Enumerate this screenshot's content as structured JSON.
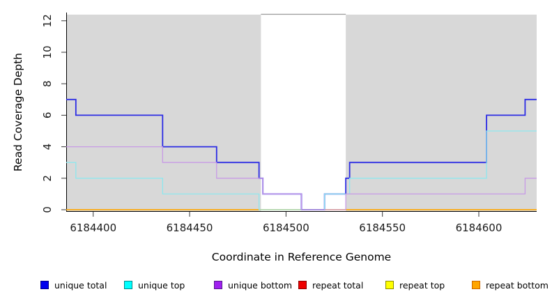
{
  "chart_data": {
    "type": "line",
    "subtype": "step",
    "title": "",
    "xlabel": "Coordinate in Reference Genome",
    "ylabel": "Read Coverage Depth",
    "xlim": [
      6184386,
      6184630
    ],
    "ylim": [
      0,
      12
    ],
    "x_tick_values": [
      6184400,
      6184450,
      6184500,
      6184550,
      6184600
    ],
    "x_tick_labels": [
      "6184400",
      "6184450",
      "6184500",
      "6184550",
      "6184600"
    ],
    "y_tick_values": [
      0,
      2,
      4,
      6,
      8,
      10,
      12
    ],
    "y_tick_labels": [
      "0",
      "2",
      "4",
      "6",
      "8",
      "10",
      "12"
    ],
    "grid": false,
    "legend_position": "bottom",
    "panel_bg": "#d8d8d8",
    "highlight_band": {
      "x0": 6184487,
      "x1": 6184531,
      "fill": "#ffffff",
      "top_border": "#999999"
    },
    "draw_order": [
      3,
      4,
      5,
      0,
      1,
      2
    ],
    "series": [
      {
        "name": "unique total",
        "legend_color": "#0000ee",
        "legend_edge": "#00008b",
        "line_color": "#2b2be4",
        "width": 1.8,
        "steps": [
          [
            6184386,
            7
          ],
          [
            6184391,
            6
          ],
          [
            6184436,
            4
          ],
          [
            6184464,
            3
          ],
          [
            6184486,
            2
          ],
          [
            6184488,
            1
          ],
          [
            6184508,
            0
          ],
          [
            6184520,
            1
          ],
          [
            6184531,
            2
          ],
          [
            6184533,
            3
          ],
          [
            6184604,
            6
          ],
          [
            6184624,
            7
          ]
        ],
        "end": 6184630
      },
      {
        "name": "unique top",
        "legend_color": "#00ffff",
        "legend_edge": "#008b8b",
        "line_color": "#8ee7ee",
        "width": 1.3,
        "steps": [
          [
            6184386,
            3
          ],
          [
            6184391,
            2
          ],
          [
            6184436,
            1
          ],
          [
            6184486,
            0
          ],
          [
            6184520,
            1
          ],
          [
            6184533,
            2
          ],
          [
            6184604,
            5
          ]
        ],
        "end": 6184630
      },
      {
        "name": "unique bottom",
        "legend_color": "#a020f0",
        "legend_edge": "#551a8b",
        "line_color": "#c79ae6",
        "width": 1.3,
        "steps": [
          [
            6184386,
            4
          ],
          [
            6184436,
            3
          ],
          [
            6184464,
            2
          ],
          [
            6184488,
            1
          ],
          [
            6184508,
            0
          ],
          [
            6184531,
            1
          ],
          [
            6184624,
            2
          ]
        ],
        "end": 6184630
      },
      {
        "name": "repeat total",
        "legend_color": "#ee0000",
        "legend_edge": "#8b0000",
        "line_color": "#e8566e",
        "width": 1.2,
        "steps": [
          [
            6184386,
            0
          ]
        ],
        "end": 6184630
      },
      {
        "name": "repeat top",
        "legend_color": "#ffff00",
        "legend_edge": "#8b8b00",
        "line_color": "#ffff00",
        "width": 1.2,
        "steps": [
          [
            6184386,
            0
          ]
        ],
        "end": 6184630
      },
      {
        "name": "repeat bottom",
        "legend_color": "#ffa500",
        "legend_edge": "#cc6600",
        "line_color": "#ffa500",
        "width": 1.6,
        "steps": [
          [
            6184386,
            0
          ]
        ],
        "end": 6184630
      }
    ]
  }
}
